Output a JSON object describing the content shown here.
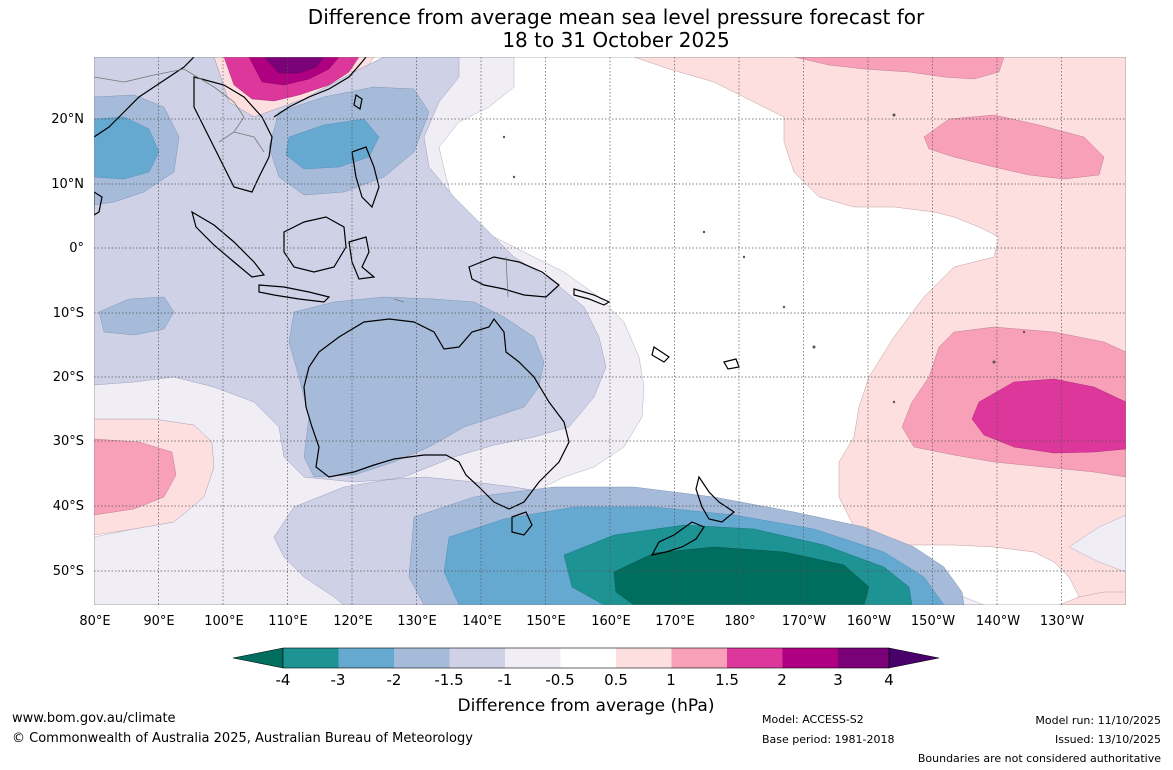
{
  "title": {
    "line1": "Difference from average mean sea level pressure forecast for",
    "line2": "18 to 31 October 2025"
  },
  "map": {
    "lat_labels": [
      "20°N",
      "10°N",
      "0°",
      "10°S",
      "20°S",
      "30°S",
      "40°S",
      "50°S"
    ],
    "lon_labels": [
      "80°E",
      "90°E",
      "100°E",
      "110°E",
      "120°E",
      "130°E",
      "140°E",
      "150°E",
      "160°E",
      "170°E",
      "180°",
      "170°W",
      "160°W",
      "150°W",
      "140°W",
      "130°W"
    ],
    "lon_range": [
      "80°E",
      "120°W"
    ],
    "lat_range": [
      "30°N",
      "55°S"
    ],
    "features": {
      "australia_anomaly": "negative (-0.5 to -1.5)",
      "nz_south_anomaly": "strong negative (-3 to -4)",
      "east_pacific_anomaly": "positive (+0.5 to +2)",
      "north_china_anomaly": "positive (+1.5 to +3)"
    }
  },
  "colorbar": {
    "labels": [
      "-4",
      "-3",
      "-2",
      "-1.5",
      "-1",
      "-0.5",
      "0.5",
      "1",
      "1.5",
      "2",
      "3",
      "4"
    ],
    "colors": {
      "lt_-4": "#006e5e",
      "-4_-3": "#1e9394",
      "-3_-2": "#65a9d1",
      "-2_-1.5": "#a6bbd9",
      "-1.5_-1": "#cfd2e7",
      "-1_-0.5": "#f0edf5",
      "-0.5_0.5": "#ffffff",
      "0.5_1": "#fddfe0",
      "1_1.5": "#f8a0b8",
      "1.5_2": "#dd379b",
      "2_3": "#ae0081",
      "3_4": "#7a0177",
      "gt_4": "#49006a"
    },
    "title": "Difference from average (hPa)"
  },
  "footer": {
    "website": "www.bom.gov.au/climate",
    "copyright": "© Commonwealth of Australia 2025, Australian Bureau of Meteorology",
    "model": "Model: ACCESS-S2",
    "base_period": "Base period: 1981-2018",
    "model_run": "Model run: 11/10/2025",
    "issued": "Issued: 13/10/2025",
    "disclaimer": "Boundaries are not considered authoritative"
  }
}
